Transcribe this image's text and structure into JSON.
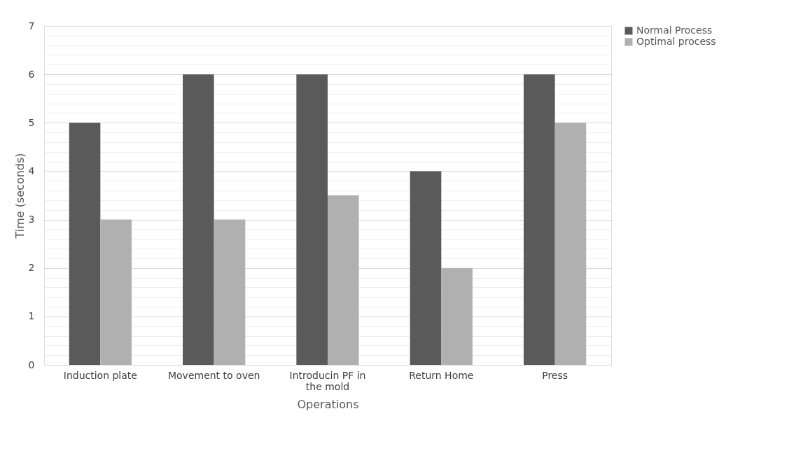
{
  "chart_data": {
    "type": "bar",
    "xlabel": "Operations",
    "ylabel": "Time (seconds)",
    "categories": [
      "Induction plate",
      "Movement to oven",
      "Introducin PF in the mold",
      "Return Home",
      "Press"
    ],
    "series": [
      {
        "name": "Normal Process",
        "color": "#5a5a5a",
        "values": [
          5,
          6,
          6,
          4,
          6
        ]
      },
      {
        "name": "Optimal process",
        "color": "#b0b0b0",
        "values": [
          3,
          3,
          3.5,
          2,
          5
        ]
      }
    ],
    "ylim": [
      0,
      7
    ],
    "yticks": [
      0,
      {
        "value": 0.2,
        "label": null
      },
      {
        "value": 0.4,
        "label": null
      },
      {
        "value": 0.6,
        "label": null
      },
      {
        "value": 0.8,
        "label": null
      },
      1,
      {
        "value": 1.2,
        "label": null
      },
      {
        "value": 1.4,
        "label": null
      },
      {
        "value": 1.6,
        "label": null
      },
      {
        "value": 1.8,
        "label": null
      },
      2,
      {
        "value": 2.2,
        "label": null
      },
      {
        "value": 2.4,
        "label": null
      },
      {
        "value": 2.6,
        "label": null
      },
      {
        "value": 2.8,
        "label": null
      },
      3,
      {
        "value": 3.2,
        "label": null
      },
      {
        "value": 3.4,
        "label": null
      },
      {
        "value": 3.6,
        "label": null
      },
      {
        "value": 3.8,
        "label": null
      },
      4,
      {
        "value": 4.2,
        "label": null
      },
      {
        "value": 4.4,
        "label": null
      },
      {
        "value": 4.6,
        "label": null
      },
      {
        "value": 4.8,
        "label": null
      },
      5,
      {
        "value": 5.2,
        "label": null
      },
      {
        "value": 5.4,
        "label": null
      },
      {
        "value": 5.6,
        "label": null
      },
      {
        "value": 5.8,
        "label": null
      },
      6,
      {
        "value": 6.2,
        "label": null
      },
      {
        "value": 6.4,
        "label": null
      },
      {
        "value": 6.6,
        "label": null
      },
      {
        "value": 6.8,
        "label": null
      },
      7
    ],
    "grid": "y",
    "legend": "right"
  }
}
